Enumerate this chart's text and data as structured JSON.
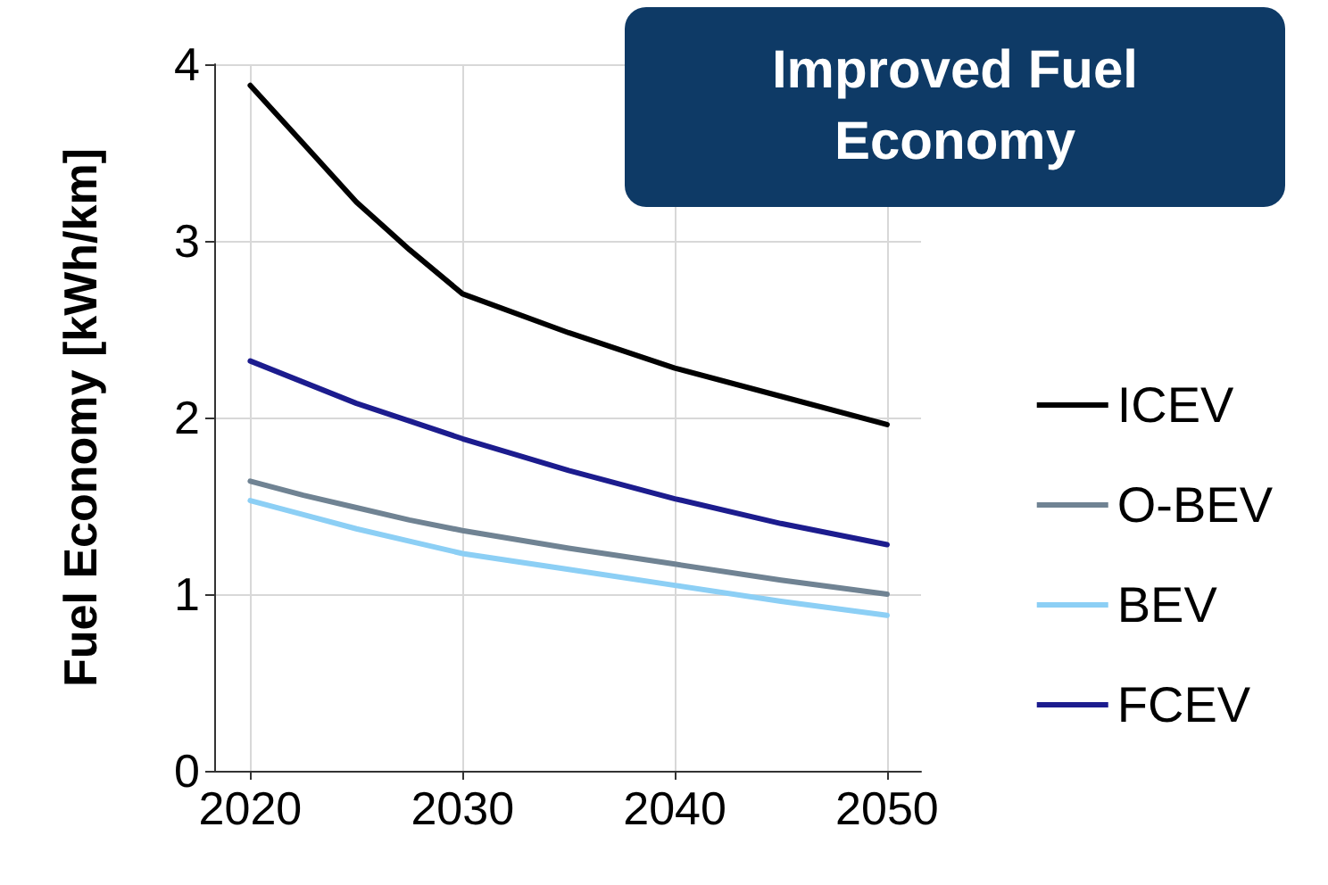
{
  "chart_data": {
    "type": "line",
    "ylabel": "Fuel Economy [kWh/km]",
    "annotations": [
      "Improved Fuel Economy"
    ],
    "x": [
      2020,
      2022.5,
      2025,
      2027.5,
      2030,
      2035,
      2040,
      2045,
      2050
    ],
    "series": [
      {
        "name": "ICEV",
        "color": "#000000",
        "values": [
          3.88,
          3.55,
          3.22,
          2.95,
          2.7,
          2.48,
          2.28,
          2.12,
          1.96
        ]
      },
      {
        "name": "O-BEV",
        "color": "#708393",
        "values": [
          1.64,
          1.56,
          1.49,
          1.42,
          1.36,
          1.26,
          1.17,
          1.08,
          1.0
        ]
      },
      {
        "name": "BEV",
        "color": "#8ccff5",
        "values": [
          1.53,
          1.45,
          1.37,
          1.3,
          1.23,
          1.14,
          1.05,
          0.96,
          0.88
        ]
      },
      {
        "name": "FCEV",
        "color": "#1c1c8e",
        "values": [
          2.32,
          2.2,
          2.08,
          1.98,
          1.88,
          1.7,
          1.54,
          1.4,
          1.28
        ]
      }
    ],
    "xlim": [
      2018.3,
      2051.6
    ],
    "xticks": [
      2020,
      2030,
      2040,
      2050
    ],
    "ylim": [
      0,
      4
    ],
    "yticks": [
      0,
      1,
      2,
      3,
      4
    ],
    "grid": true,
    "legend": "right",
    "marker": "none",
    "line_style": "solid"
  }
}
